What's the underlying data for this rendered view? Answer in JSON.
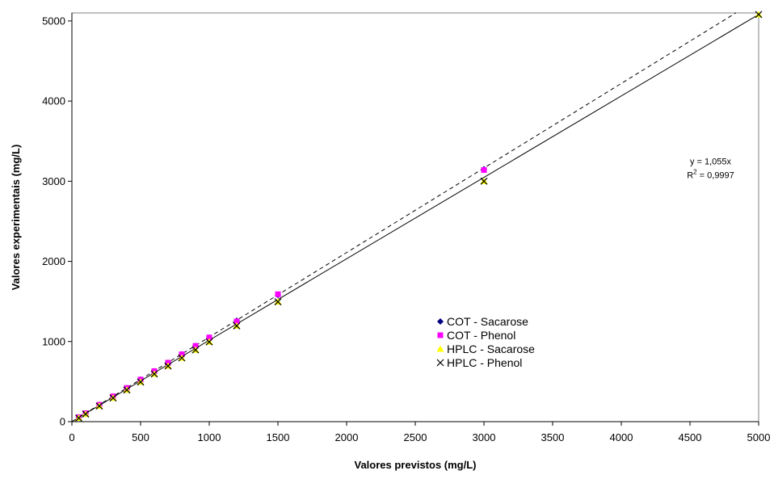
{
  "chart_data": {
    "type": "scatter",
    "title": "",
    "xlabel": "Valores previstos (mg/L)",
    "ylabel": "Valores experimentais (mg/L)",
    "xlim": [
      0,
      5000
    ],
    "ylim": [
      0,
      5100
    ],
    "x_ticks": [
      0,
      500,
      1000,
      1500,
      2000,
      2500,
      3000,
      3500,
      4000,
      4500,
      5000
    ],
    "y_ticks": [
      0,
      1000,
      2000,
      3000,
      4000,
      5000
    ],
    "grid": false,
    "legend_position": "center-right",
    "series": [
      {
        "name": "COT - Sacarose",
        "marker": "diamond",
        "color": "#000080",
        "x": [
          50,
          100,
          200,
          300,
          400,
          500,
          600,
          700,
          800,
          900,
          1000,
          1200,
          1500,
          3000
        ],
        "y": [
          55,
          105,
          210,
          315,
          420,
          525,
          630,
          735,
          840,
          945,
          1050,
          1260,
          1580,
          3150
        ]
      },
      {
        "name": "COT - Phenol",
        "marker": "square",
        "color": "#ff00ff",
        "x": [
          50,
          100,
          200,
          300,
          400,
          500,
          600,
          700,
          800,
          900,
          1000,
          1200,
          1500,
          3000
        ],
        "y": [
          55,
          105,
          210,
          315,
          420,
          525,
          630,
          735,
          840,
          945,
          1050,
          1250,
          1590,
          3140
        ]
      },
      {
        "name": "HPLC - Sacarose",
        "marker": "triangle",
        "color": "#ffff00",
        "x": [
          50,
          100,
          200,
          300,
          400,
          500,
          600,
          700,
          800,
          900,
          1000,
          1200,
          1500,
          3000,
          5000
        ],
        "y": [
          45,
          95,
          195,
          295,
          395,
          495,
          595,
          695,
          795,
          895,
          995,
          1195,
          1495,
          3000,
          5080
        ]
      },
      {
        "name": "HPLC - Phenol",
        "marker": "x",
        "color": "#000000",
        "x": [
          50,
          100,
          200,
          300,
          400,
          500,
          600,
          700,
          800,
          900,
          1000,
          1200,
          1500,
          3000,
          5000
        ],
        "y": [
          45,
          95,
          195,
          295,
          395,
          495,
          595,
          695,
          795,
          895,
          995,
          1195,
          1495,
          3000,
          5080
        ]
      }
    ],
    "trendlines": [
      {
        "style": "dashed",
        "slope": 1.055,
        "x0": 0,
        "x1": 5000
      },
      {
        "style": "solid",
        "slope": 1.016,
        "x0": 0,
        "x1": 5000
      }
    ],
    "annotation": {
      "equation": "y = 1,055x",
      "r2_prefix": "R",
      "r2_sup": "2",
      "r2_value": " = 0,9997",
      "anchor_x": 4650,
      "anchor_y": 3150
    }
  }
}
